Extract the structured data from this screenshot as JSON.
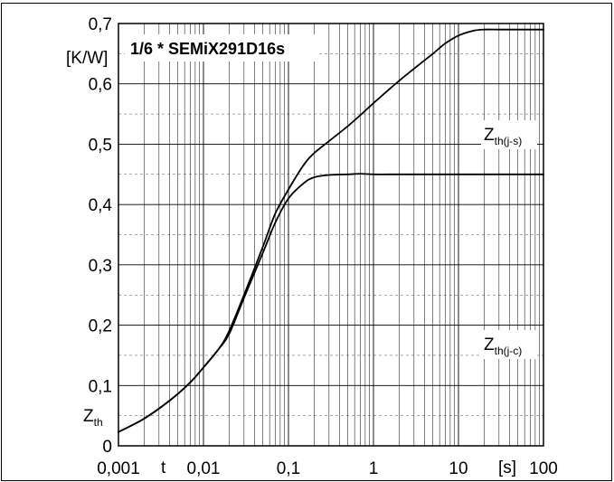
{
  "chart_data": {
    "type": "line",
    "title": "1/6 * SEMiX291D16s",
    "x_scale": "log",
    "xlim": [
      0.001,
      100
    ],
    "ylim": [
      0,
      0.7
    ],
    "x_ticks": [
      "0,001",
      "0,01",
      "0,1",
      "1",
      "10",
      "100"
    ],
    "y_ticks": [
      "0",
      "0,1",
      "0,2",
      "0,3",
      "0,4",
      "0,5",
      "0,6",
      "0,7"
    ],
    "x_unit": "[s]",
    "x_symbol": "t",
    "y_unit": "[K/W]",
    "y_symbol": {
      "main": "Z",
      "sub": "th"
    },
    "grid": true,
    "line_color": "#000000",
    "series": [
      {
        "label_main": "Z",
        "label_sub": "th(j-s)",
        "x": [
          0.001,
          0.002,
          0.004,
          0.007,
          0.01,
          0.015,
          0.02,
          0.03,
          0.05,
          0.07,
          0.1,
          0.15,
          0.2,
          0.3,
          0.5,
          0.7,
          1,
          2,
          3,
          5,
          7,
          10,
          15,
          20,
          30,
          50,
          100
        ],
        "values": [
          0.023,
          0.045,
          0.075,
          0.105,
          0.13,
          0.16,
          0.19,
          0.25,
          0.33,
          0.385,
          0.425,
          0.465,
          0.485,
          0.505,
          0.53,
          0.548,
          0.568,
          0.605,
          0.625,
          0.65,
          0.667,
          0.68,
          0.688,
          0.69,
          0.69,
          0.69,
          0.69
        ]
      },
      {
        "label_main": "Z",
        "label_sub": "th(j-c)",
        "x": [
          0.001,
          0.002,
          0.004,
          0.007,
          0.01,
          0.015,
          0.02,
          0.03,
          0.05,
          0.07,
          0.1,
          0.15,
          0.2,
          0.3,
          0.5,
          0.7,
          1,
          2,
          5,
          10,
          100
        ],
        "values": [
          0.023,
          0.045,
          0.075,
          0.105,
          0.13,
          0.16,
          0.185,
          0.245,
          0.32,
          0.37,
          0.41,
          0.435,
          0.445,
          0.449,
          0.45,
          0.451,
          0.45,
          0.45,
          0.45,
          0.45,
          0.45
        ]
      }
    ]
  }
}
